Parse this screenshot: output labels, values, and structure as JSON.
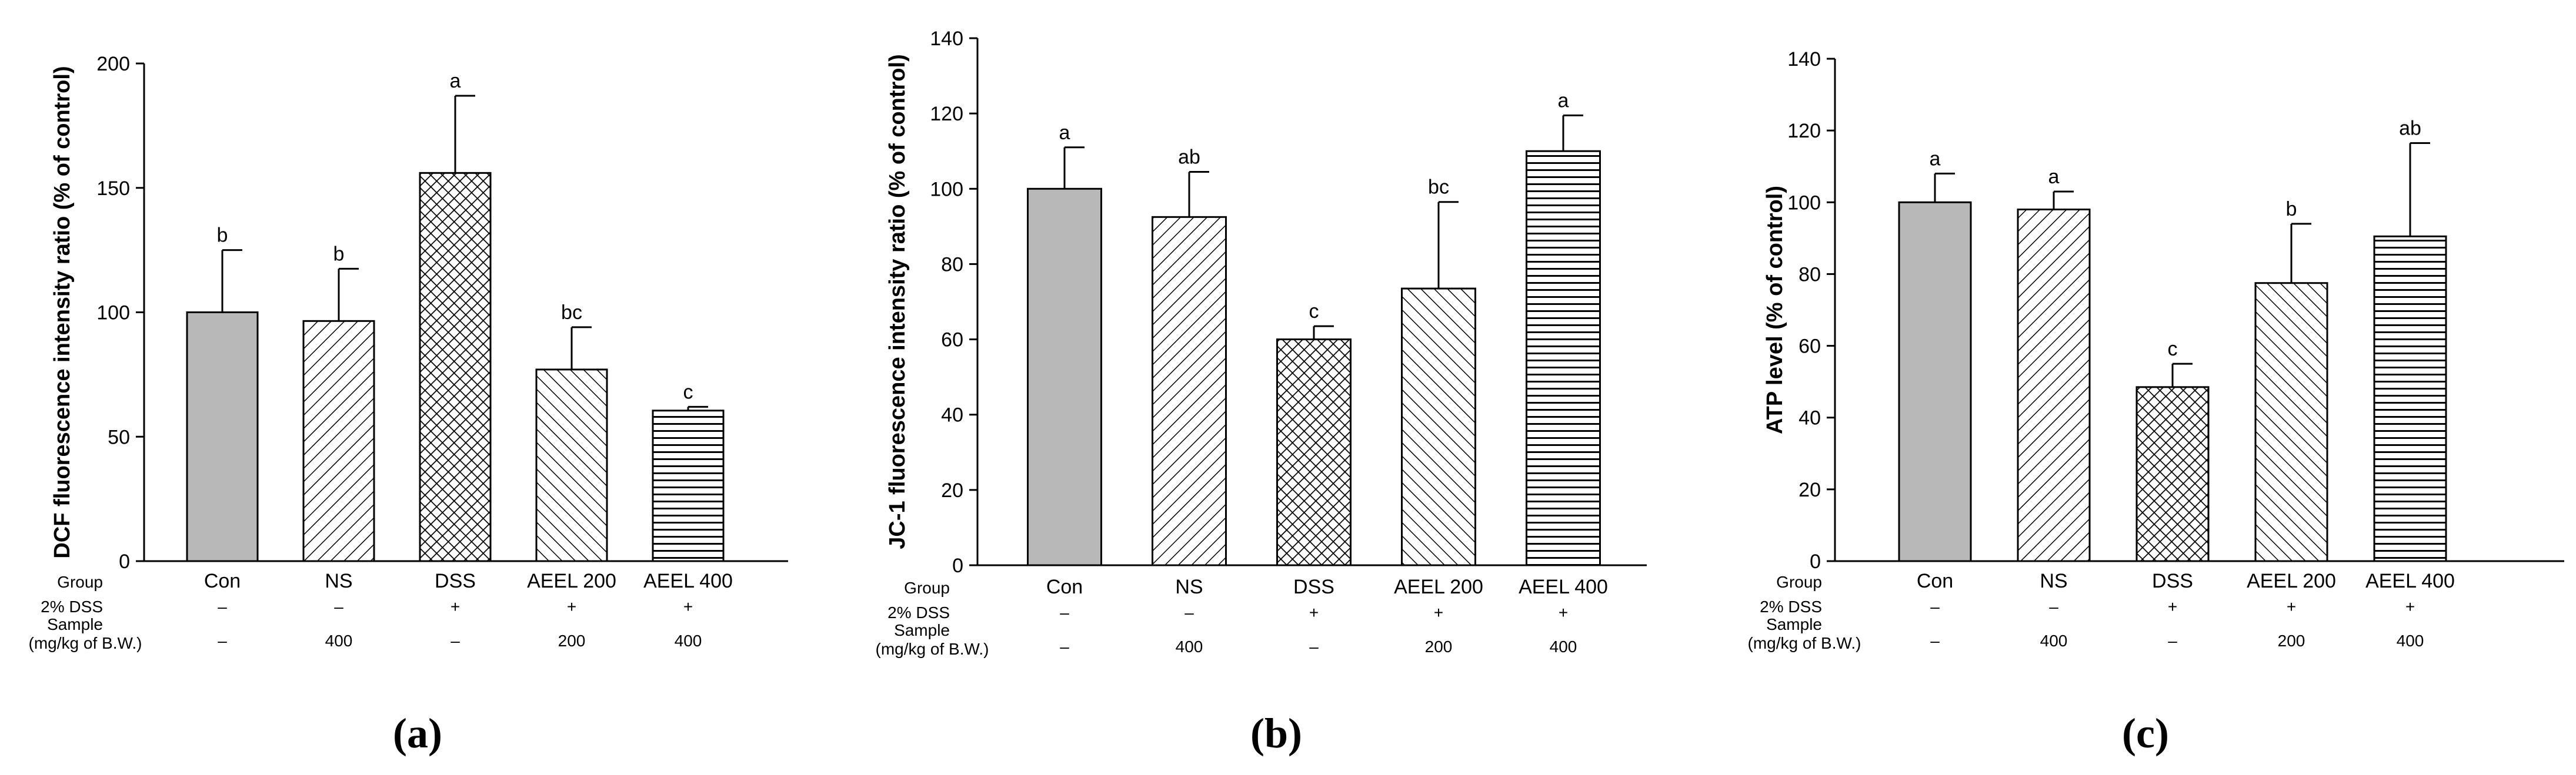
{
  "chart_data": [
    {
      "type": "bar",
      "panel_label": "(a)",
      "ylabel": "DCF fluorescence intensity ratio (% of control)",
      "ylim": [
        0,
        200
      ],
      "yticks": [
        0,
        50,
        100,
        150,
        200
      ],
      "categories": [
        "Con",
        "NS",
        "DSS",
        "AEEL 200",
        "AEEL 400"
      ],
      "values": [
        100,
        96.5,
        156,
        77,
        60.5
      ],
      "errors": [
        25,
        21,
        31,
        17,
        1.5
      ],
      "letters": [
        "b",
        "b",
        "a",
        "bc",
        "c"
      ]
    },
    {
      "type": "bar",
      "panel_label": "(b)",
      "ylabel": "JC-1 fluorescence intensity ratio (% of control)",
      "ylim": [
        0,
        140
      ],
      "yticks": [
        0,
        20,
        40,
        60,
        80,
        100,
        120,
        140
      ],
      "categories": [
        "Con",
        "NS",
        "DSS",
        "AEEL 200",
        "AEEL 400"
      ],
      "values": [
        100,
        92.5,
        60,
        73.5,
        110
      ],
      "errors": [
        11,
        12,
        3.5,
        23,
        9.5
      ],
      "letters": [
        "a",
        "ab",
        "c",
        "bc",
        "a"
      ]
    },
    {
      "type": "bar",
      "panel_label": "(c)",
      "ylabel": "ATP level (% of control)",
      "ylim": [
        0,
        140
      ],
      "yticks": [
        0,
        20,
        40,
        60,
        80,
        100,
        120,
        140
      ],
      "categories": [
        "Con",
        "NS",
        "DSS",
        "AEEL 200",
        "AEEL 400"
      ],
      "values": [
        100,
        98,
        48.5,
        77.5,
        90.5
      ],
      "errors": [
        8,
        5,
        6.5,
        16.5,
        26
      ],
      "letters": [
        "a",
        "a",
        "c",
        "b",
        "ab"
      ]
    }
  ],
  "table_labels": {
    "group": "Group",
    "dss": "2% DSS",
    "sample": "Sample",
    "unit": "(mg/kg of B.W.)"
  },
  "dss_row": [
    "–",
    "–",
    "+",
    "+",
    "+"
  ],
  "sample_row": [
    "–",
    "400",
    "–",
    "200",
    "400"
  ],
  "colors": {
    "con": "#b8b8b8",
    "stroke": "#000000",
    "pattern_bg": "#ffffff"
  }
}
